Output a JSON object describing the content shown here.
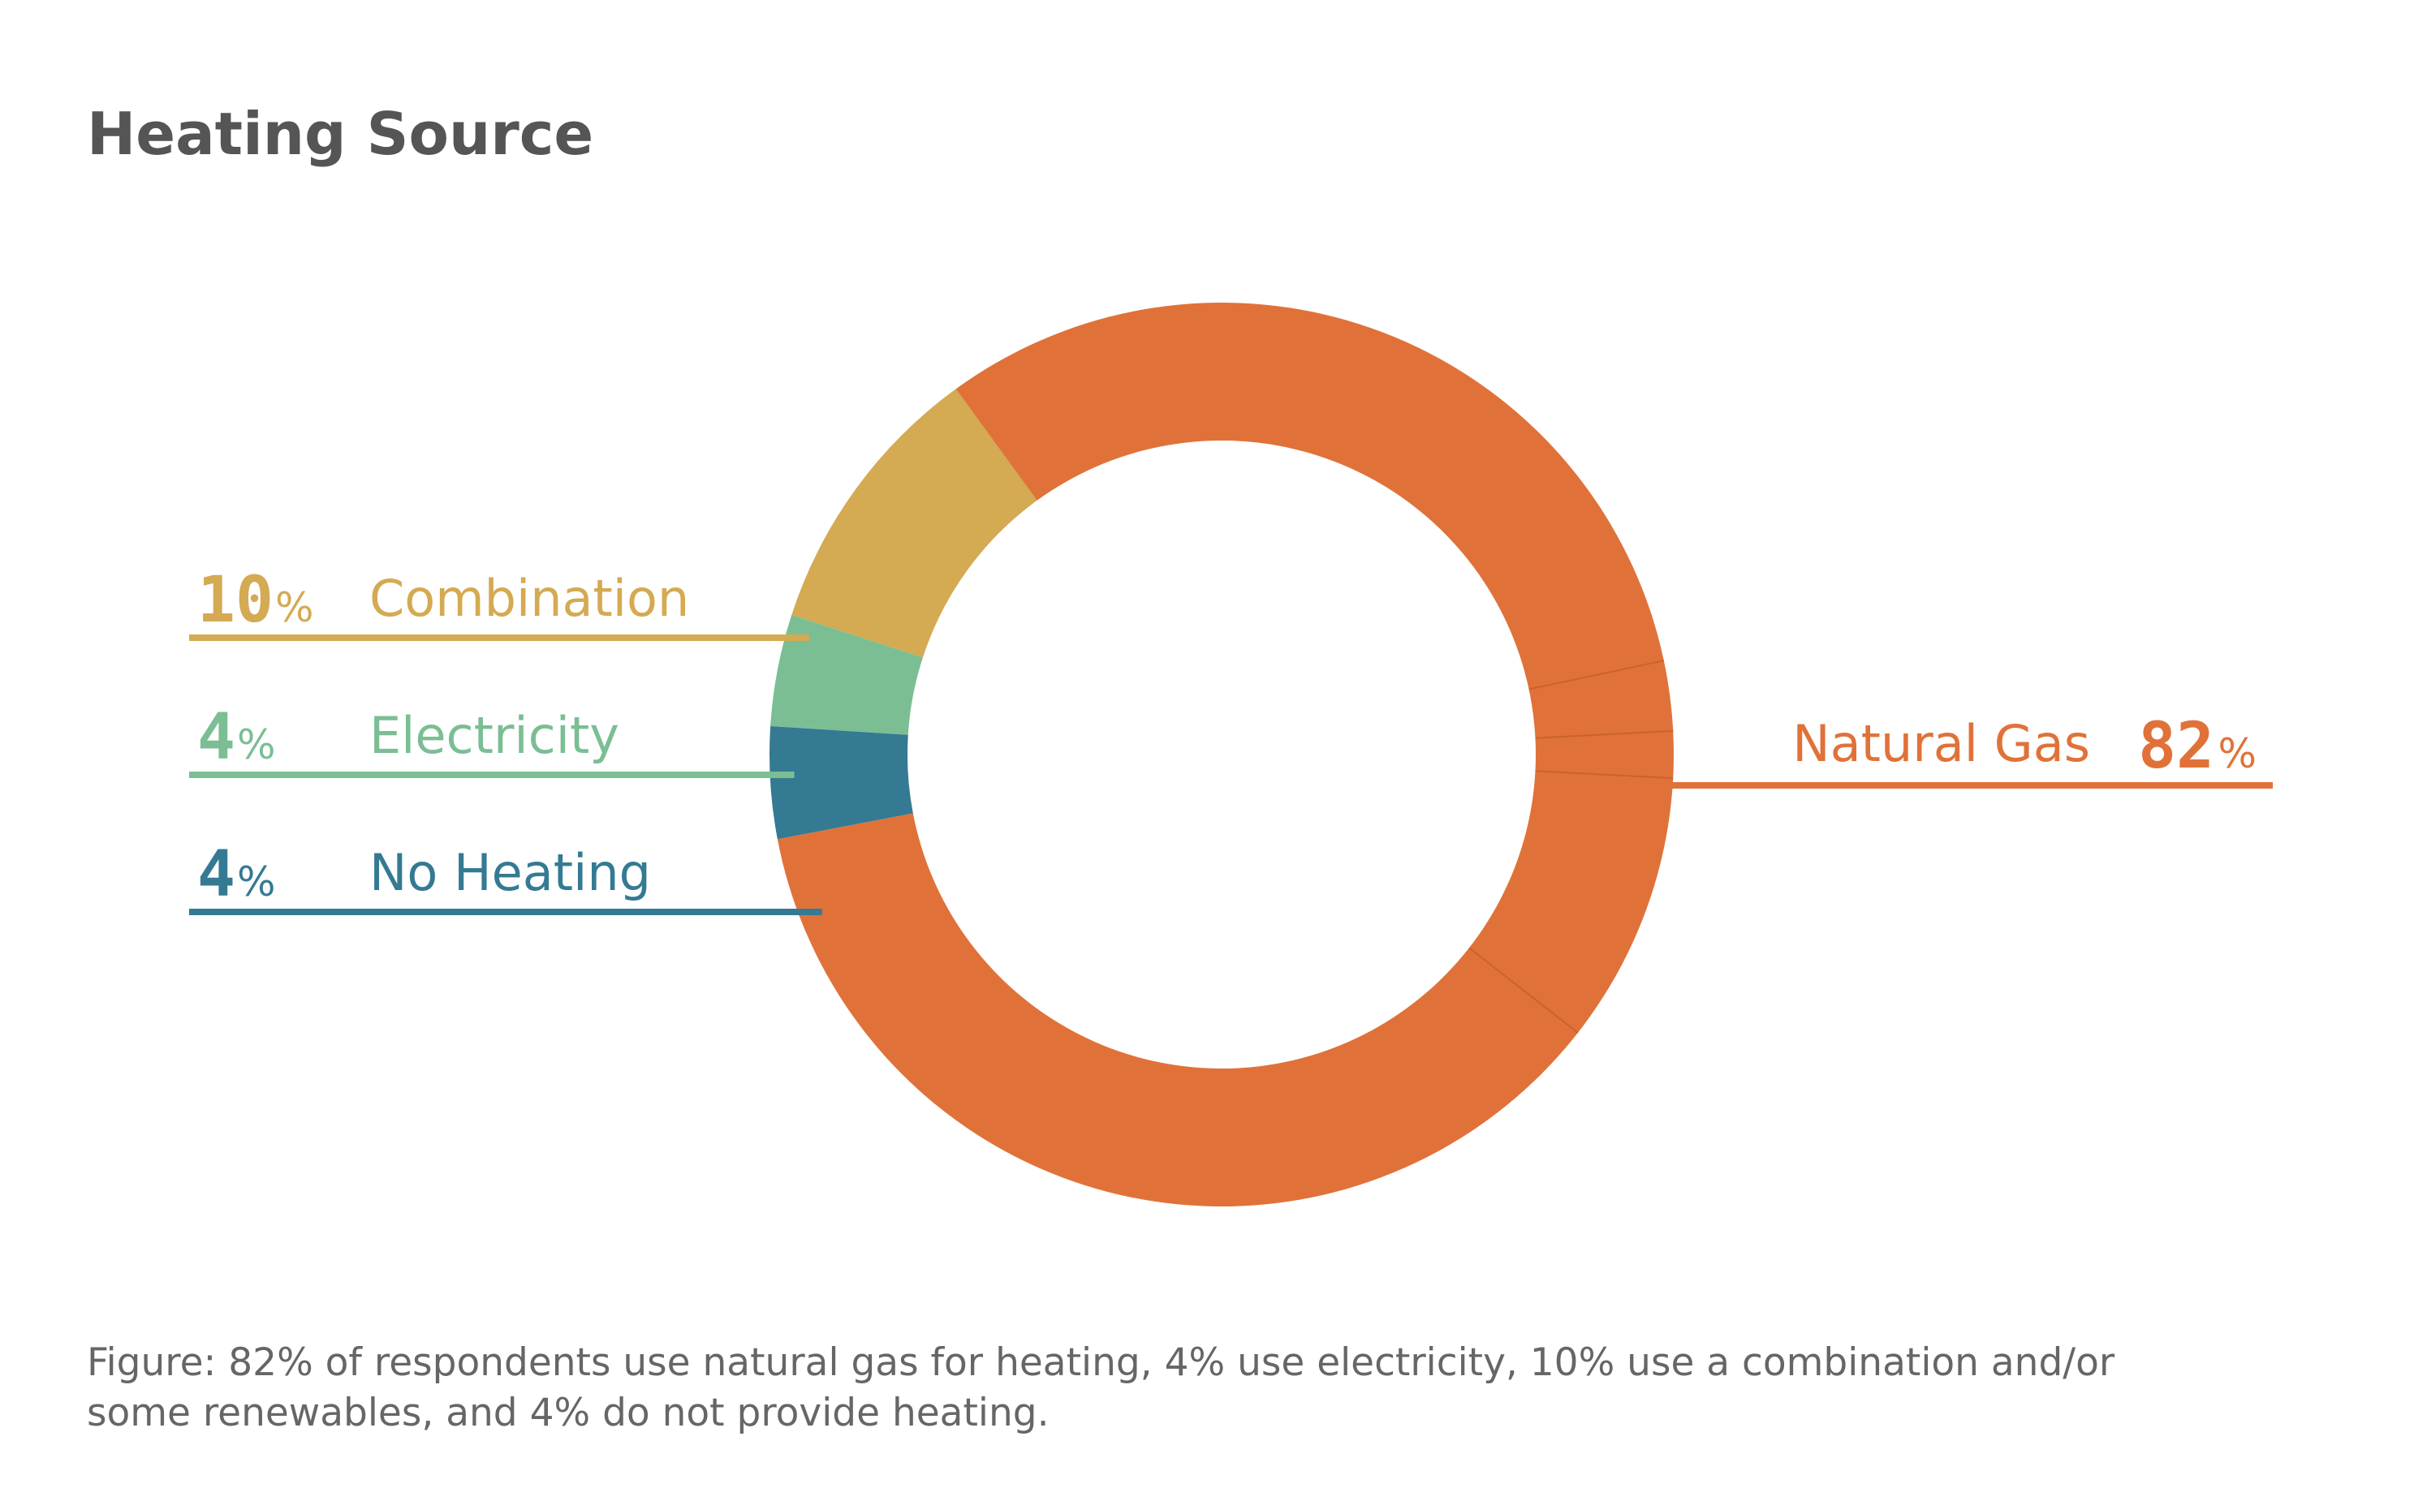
{
  "chart_data": {
    "type": "pie",
    "style": "donut",
    "title": "Heating Source",
    "unit": "%",
    "slices": [
      {
        "label": "Natural Gas",
        "value": 82,
        "color": "#E07239"
      },
      {
        "label": "Combination",
        "value": 10,
        "color": "#D4AA52"
      },
      {
        "label": "Electricity",
        "value": 4,
        "color": "#7BBE94"
      },
      {
        "label": "No Heating",
        "value": 4,
        "color": "#357A93"
      }
    ],
    "legend": "callout-labels",
    "caption_lines": [
      "Figure: 82% of respondents use natural gas for heating, 4% use electricity, 10% use a combination and/or",
      "some renewables, and 4% do not provide heating."
    ]
  }
}
